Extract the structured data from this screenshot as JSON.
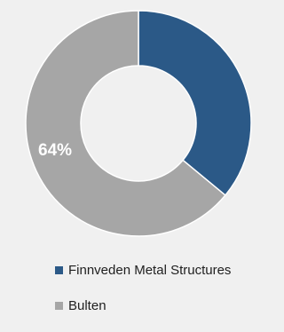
{
  "chart_data": {
    "type": "pie",
    "donut": true,
    "categories": [
      "Finnveden Metal Structures",
      "Bulten"
    ],
    "values": [
      36,
      64
    ],
    "colors": [
      "#2b5987",
      "#a6a6a6"
    ],
    "data_labels": [
      "",
      "64%"
    ],
    "legend_position": "bottom"
  }
}
